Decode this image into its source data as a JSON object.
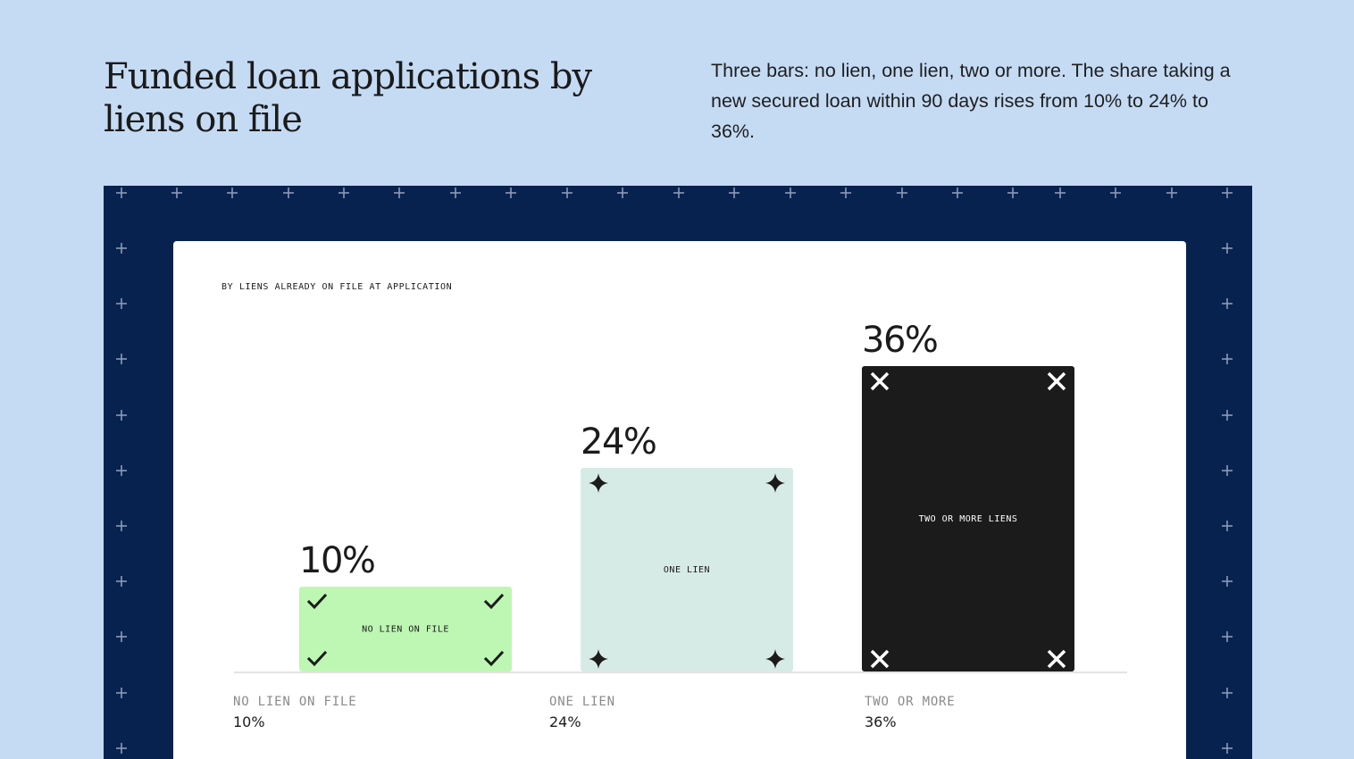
{
  "header": {
    "title": "Funded loan applications by liens on file",
    "description": "Three bars: no lien, one lien, two or more. The share taking a new secured loan within 90 days rises from 10% to 24% to 36%."
  },
  "colors": {
    "page_background": "#c5dbf4",
    "frame_background": "#082250",
    "pattern_plus": "#8a9bb7",
    "card_background": "#ffffff",
    "baseline": "#e3e3e3"
  },
  "chart_data": {
    "type": "bar",
    "title": "",
    "subtitle": "BY LIENS ALREADY ON FILE AT APPLICATION",
    "xlabel": "",
    "ylabel": "",
    "categories": [
      "NO LIEN ON FILE",
      "ONE LIEN",
      "TWO OR MORE LIENS"
    ],
    "values": [
      10,
      24,
      36
    ],
    "value_labels": [
      "10%",
      "24%",
      "36%"
    ],
    "unit": "%",
    "grid": false,
    "legend": "none",
    "bar_styles": [
      {
        "fill": "#bdf7b3",
        "ink": "#1b1b1b",
        "marker": "check-icon"
      },
      {
        "fill": "#d7ebe6",
        "ink": "#1b1b1b",
        "marker": "plus-icon"
      },
      {
        "fill": "#1b1b1b",
        "ink": "#ffffff",
        "marker": "x-icon"
      }
    ],
    "footer": [
      {
        "name": "NO LIEN ON FILE",
        "value": "10%"
      },
      {
        "name": "ONE LIEN",
        "value": "24%"
      },
      {
        "name": "TWO OR MORE",
        "value": "36%"
      }
    ]
  }
}
